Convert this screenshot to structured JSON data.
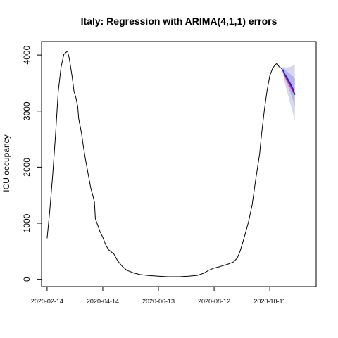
{
  "chart_data": {
    "type": "line",
    "title": "Italy: Regression with ARIMA(4,1,1) errors",
    "xlabel": "",
    "ylabel": "ICU occupancy",
    "x_ticks": [
      {
        "date": "2020-02-14",
        "label": "2020-02-14"
      },
      {
        "date": "2020-04-14",
        "label": "2020-04-14"
      },
      {
        "date": "2020-06-13",
        "label": "2020-06-13"
      },
      {
        "date": "2020-08-12",
        "label": "2020-08-12"
      },
      {
        "date": "2020-10-11",
        "label": "2020-10-11"
      }
    ],
    "y_ticks": [
      0,
      1000,
      2000,
      3000,
      4000
    ],
    "xlim": [
      "2020-02-08",
      "2020-11-30"
    ],
    "ylim": [
      -130,
      4240
    ],
    "grid": false,
    "series": [
      {
        "role": "observed",
        "color": "#000000",
        "points": [
          [
            "2020-02-14",
            730
          ],
          [
            "2020-02-17",
            1250
          ],
          [
            "2020-02-20",
            1860
          ],
          [
            "2020-02-23",
            2560
          ],
          [
            "2020-02-26",
            3350
          ],
          [
            "2020-02-29",
            3780
          ],
          [
            "2020-03-03",
            4010
          ],
          [
            "2020-03-07",
            4070
          ],
          [
            "2020-03-09",
            3930
          ],
          [
            "2020-03-12",
            3610
          ],
          [
            "2020-03-14",
            3350
          ],
          [
            "2020-03-16",
            3240
          ],
          [
            "2020-03-18",
            3080
          ],
          [
            "2020-03-19",
            2870
          ],
          [
            "2020-03-22",
            2610
          ],
          [
            "2020-03-24",
            2380
          ],
          [
            "2020-03-26",
            2170
          ],
          [
            "2020-03-28",
            1990
          ],
          [
            "2020-03-30",
            1810
          ],
          [
            "2020-04-01",
            1630
          ],
          [
            "2020-04-03",
            1510
          ],
          [
            "2020-04-05",
            1380
          ],
          [
            "2020-04-06",
            1080
          ],
          [
            "2020-04-08",
            990
          ],
          [
            "2020-04-11",
            850
          ],
          [
            "2020-04-14",
            750
          ],
          [
            "2020-04-17",
            620
          ],
          [
            "2020-04-20",
            530
          ],
          [
            "2020-04-26",
            450
          ],
          [
            "2020-04-30",
            330
          ],
          [
            "2020-05-05",
            230
          ],
          [
            "2020-05-10",
            160
          ],
          [
            "2020-05-18",
            110
          ],
          [
            "2020-05-24",
            85
          ],
          [
            "2020-06-01",
            70
          ],
          [
            "2020-06-13",
            55
          ],
          [
            "2020-06-23",
            45
          ],
          [
            "2020-07-05",
            45
          ],
          [
            "2020-07-15",
            55
          ],
          [
            "2020-07-25",
            70
          ],
          [
            "2020-08-01",
            110
          ],
          [
            "2020-08-06",
            160
          ],
          [
            "2020-08-12",
            200
          ],
          [
            "2020-08-19",
            230
          ],
          [
            "2020-08-27",
            270
          ],
          [
            "2020-09-02",
            310
          ],
          [
            "2020-09-06",
            380
          ],
          [
            "2020-09-09",
            500
          ],
          [
            "2020-09-13",
            720
          ],
          [
            "2020-09-18",
            1020
          ],
          [
            "2020-09-22",
            1330
          ],
          [
            "2020-09-26",
            1800
          ],
          [
            "2020-09-30",
            2230
          ],
          [
            "2020-10-02",
            2570
          ],
          [
            "2020-10-05",
            3000
          ],
          [
            "2020-10-08",
            3360
          ],
          [
            "2020-10-11",
            3630
          ],
          [
            "2020-10-14",
            3760
          ],
          [
            "2020-10-17",
            3830
          ],
          [
            "2020-10-19",
            3850
          ],
          [
            "2020-10-21",
            3790
          ],
          [
            "2020-10-23",
            3770
          ],
          [
            "2020-10-25",
            3730
          ]
        ]
      },
      {
        "role": "fitted",
        "color": "#e0218a",
        "points": [
          [
            "2020-10-25",
            3730
          ],
          [
            "2020-10-27",
            3650
          ],
          [
            "2020-10-30",
            3540
          ],
          [
            "2020-11-02",
            3450
          ],
          [
            "2020-11-05",
            3350
          ],
          [
            "2020-11-07",
            3300
          ]
        ]
      },
      {
        "role": "forecast",
        "color": "#1c1cd6",
        "points": [
          [
            "2020-10-25",
            3740
          ],
          [
            "2020-10-27",
            3660
          ],
          [
            "2020-10-30",
            3580
          ],
          [
            "2020-11-02",
            3490
          ],
          [
            "2020-11-05",
            3390
          ],
          [
            "2020-11-07",
            3290
          ]
        ],
        "interval_80": {
          "color": "#b3b3e6",
          "lower": [
            3710,
            3590,
            3470,
            3340,
            3200,
            3090
          ],
          "upper": [
            3770,
            3740,
            3700,
            3660,
            3620,
            3580
          ]
        },
        "interval_95": {
          "color": "#d6d6ee",
          "lower": [
            3690,
            3520,
            3330,
            3140,
            2960,
            2820
          ],
          "upper": [
            3790,
            3780,
            3780,
            3790,
            3810,
            3820
          ]
        }
      }
    ]
  }
}
